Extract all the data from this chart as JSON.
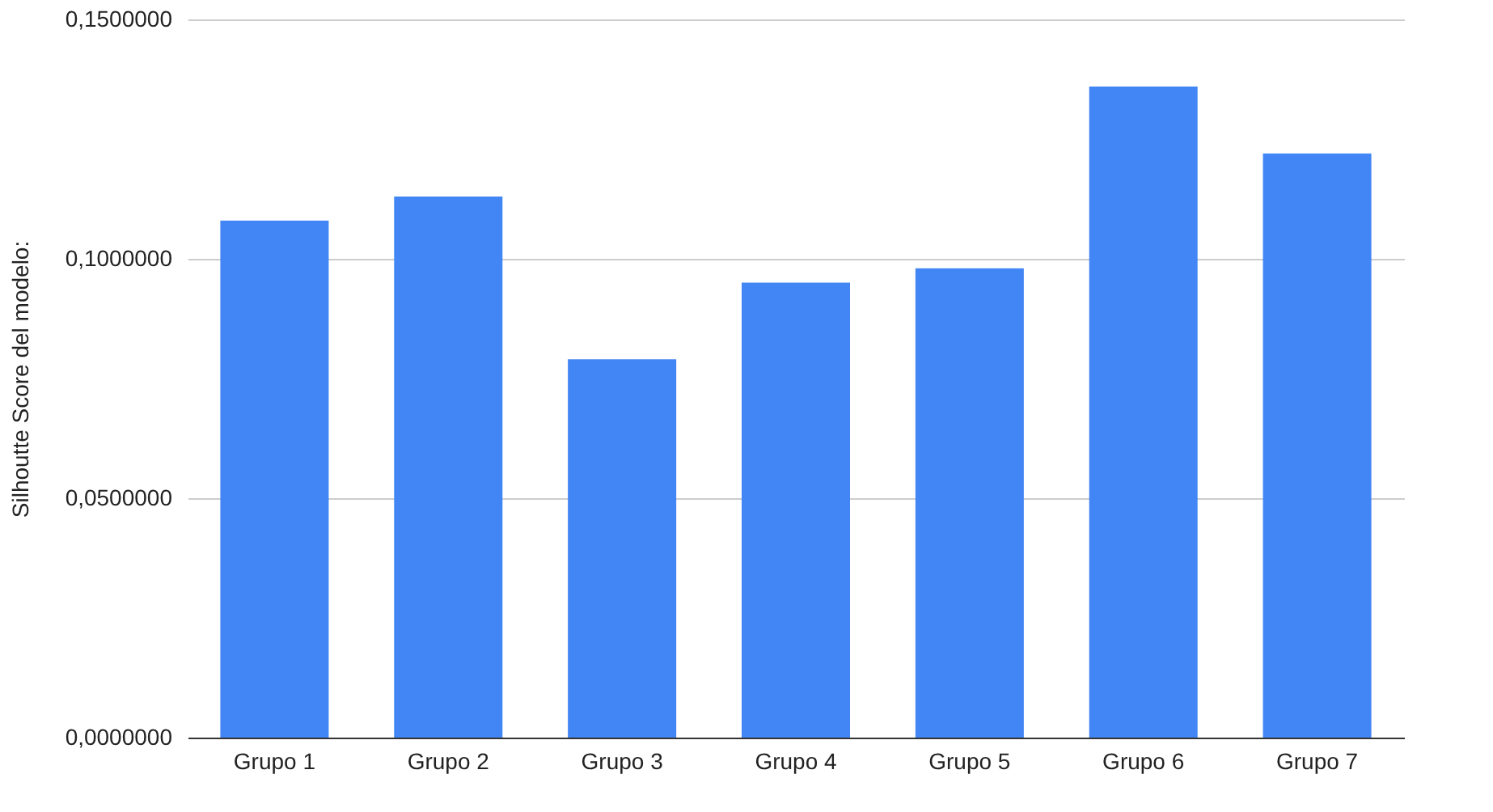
{
  "chart_data": {
    "type": "bar",
    "ylabel": "Silhoutte Score del modelo:",
    "categories": [
      "Grupo 1",
      "Grupo 2",
      "Grupo 3",
      "Grupo 4",
      "Grupo 5",
      "Grupo 6",
      "Grupo 7"
    ],
    "values": [
      0.108,
      0.113,
      0.079,
      0.095,
      0.098,
      0.136,
      0.122
    ],
    "color": "#4285f4",
    "ylim": [
      0,
      0.15
    ],
    "yticks": [
      {
        "value": 0,
        "label": "0,0000000"
      },
      {
        "value": 0.05,
        "label": "0,0500000"
      },
      {
        "value": 0.1,
        "label": "0,1000000"
      },
      {
        "value": 0.15,
        "label": "0,1500000"
      }
    ],
    "grid": "y"
  }
}
